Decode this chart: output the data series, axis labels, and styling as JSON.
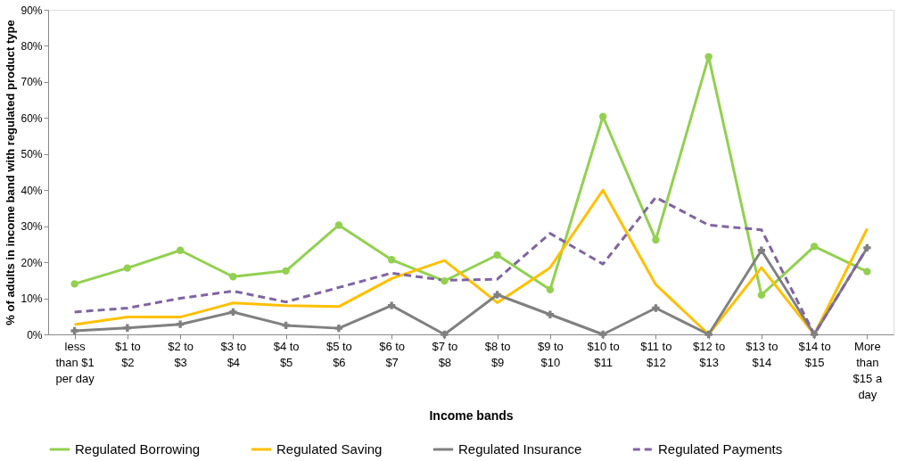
{
  "chart_data": {
    "type": "line",
    "xlabel": "Income bands",
    "ylabel": "% of adults in income band with regulated product type",
    "categories": [
      "less\nthan $1\nper day",
      "$1 to\n$2",
      "$2 to\n$3",
      "$3 to\n$4",
      "$4 to\n$5",
      "$5 to\n$6",
      "$6 to\n$7",
      "$7 to\n$8",
      "$8 to\n$9",
      "$9 to\n$10",
      "$10 to\n$11",
      "$11 to\n$12",
      "$12 to\n$13",
      "$13 to\n$14",
      "$14 to\n$15",
      "More\nthan\n$15 a\nday"
    ],
    "ylim": [
      0,
      90
    ],
    "yticks": [
      {
        "value": 0,
        "label": "0%"
      },
      {
        "value": 10,
        "label": "10%"
      },
      {
        "value": 20,
        "label": "20%"
      },
      {
        "value": 30,
        "label": "30%"
      },
      {
        "value": 40,
        "label": "40%"
      },
      {
        "value": 50,
        "label": "50%"
      },
      {
        "value": 60,
        "label": "60%"
      },
      {
        "value": 70,
        "label": "70%"
      },
      {
        "value": 80,
        "label": "80%"
      },
      {
        "value": 90,
        "label": "90%"
      }
    ],
    "grid": false,
    "legend": "bottom",
    "series": [
      {
        "name": "Regulated Borrowing",
        "color": "#92d050",
        "marker": "circle",
        "line_style": "solid",
        "values": [
          14,
          18.4,
          23.3,
          16,
          17.6,
          30.3,
          20.7,
          14.8,
          22,
          12.4,
          60.4,
          26.2,
          77,
          10.9,
          24.4,
          17.4
        ]
      },
      {
        "name": "Regulated Saving",
        "color": "#ffc000",
        "marker": "none",
        "line_style": "solid",
        "values": [
          2.7,
          4.8,
          4.8,
          8.7,
          8,
          7.7,
          15.5,
          20.5,
          8.8,
          18.5,
          40,
          13.8,
          0,
          18.5,
          0,
          29.3
        ]
      },
      {
        "name": "Regulated Insurance",
        "color": "#808080",
        "marker": "cross",
        "line_style": "solid",
        "values": [
          1,
          1.8,
          2.8,
          6.2,
          2.5,
          1.7,
          8,
          0,
          11,
          5.5,
          0,
          7.3,
          0,
          23.3,
          0,
          24
        ]
      },
      {
        "name": "Regulated Payments",
        "color": "#8064a2",
        "marker": "none",
        "line_style": "dashed",
        "values": [
          6.2,
          7.3,
          10,
          12,
          9,
          13,
          17,
          15,
          15.3,
          28,
          19.5,
          38,
          30.3,
          29,
          0,
          24
        ]
      }
    ]
  }
}
